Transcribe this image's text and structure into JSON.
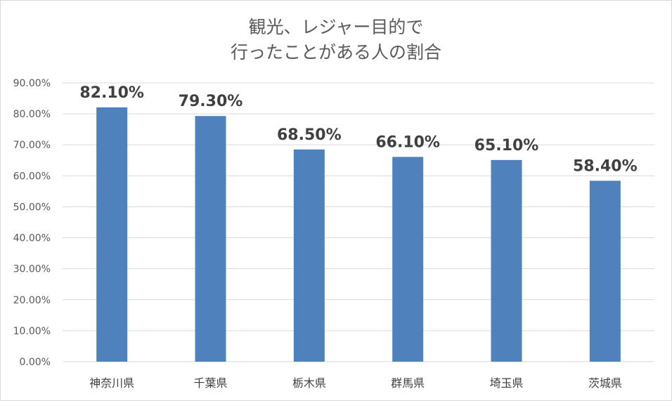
{
  "chart_data": {
    "type": "bar",
    "title": [
      "観光、レジャー目的で",
      "行ったことがある人の割合"
    ],
    "xlabel": "",
    "ylabel": "",
    "categories": [
      "神奈川県",
      "千葉県",
      "栃木県",
      "群馬県",
      "埼玉県",
      "茨城県"
    ],
    "values": [
      82.1,
      79.3,
      68.5,
      66.1,
      65.1,
      58.4
    ],
    "data_labels": [
      "82.10%",
      "79.30%",
      "68.50%",
      "66.10%",
      "65.10%",
      "58.40%"
    ],
    "ylim": [
      0,
      90
    ],
    "yticks": [
      0,
      10,
      20,
      30,
      40,
      50,
      60,
      70,
      80,
      90
    ],
    "ytick_labels": [
      "0.00%",
      "10.00%",
      "20.00%",
      "30.00%",
      "40.00%",
      "50.00%",
      "60.00%",
      "70.00%",
      "80.00%",
      "90.00%"
    ],
    "grid": true,
    "legend": "none",
    "bar_color": "#4f81bd",
    "grid_color": "#d9d9d9"
  }
}
